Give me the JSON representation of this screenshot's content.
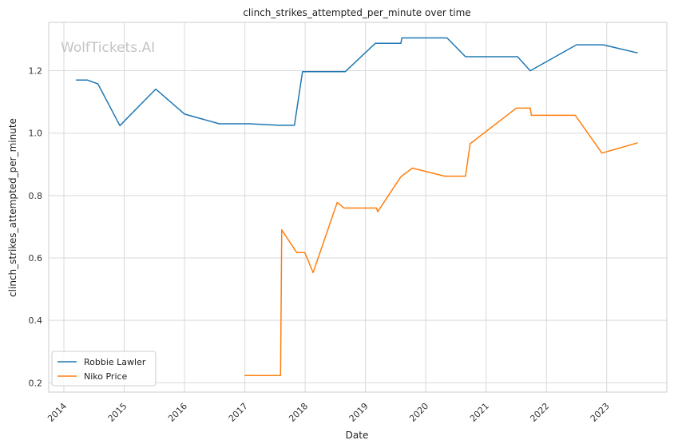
{
  "watermark": "WolfTickets.AI",
  "colors": {
    "background": "#ffffff",
    "grid": "#d9d9d9",
    "frame": "#cccccc",
    "series1": "#1f77b4",
    "series2": "#ff7f0e"
  },
  "chart_data": {
    "type": "line",
    "title": "clinch_strikes_attempted_per_minute over time",
    "xlabel": "Date",
    "ylabel": "clinch_strikes_attempted_per_minute",
    "x_is_date": true,
    "xlim": [
      "2013-10-01",
      "2023-12-31"
    ],
    "ylim": [
      0.17,
      1.355
    ],
    "x_ticks": [
      "2014",
      "2015",
      "2016",
      "2017",
      "2018",
      "2019",
      "2020",
      "2021",
      "2022",
      "2023"
    ],
    "y_ticks": [
      0.2,
      0.4,
      0.6,
      0.8,
      1.0,
      1.2
    ],
    "grid": true,
    "legend_position": "lower-left",
    "series": [
      {
        "name": "Robbie Lawler",
        "color": "#1f77b4",
        "points": [
          [
            "2014-03-15",
            1.17
          ],
          [
            "2014-05-24",
            1.17
          ],
          [
            "2014-07-26",
            1.158
          ],
          [
            "2014-12-06",
            1.024
          ],
          [
            "2015-07-11",
            1.141
          ],
          [
            "2016-01-02",
            1.061
          ],
          [
            "2016-07-30",
            1.03
          ],
          [
            "2017-01-28",
            1.03
          ],
          [
            "2017-07-29",
            1.025
          ],
          [
            "2017-10-28",
            1.025
          ],
          [
            "2017-12-16",
            1.197
          ],
          [
            "2018-09-01",
            1.197
          ],
          [
            "2019-03-02",
            1.288
          ],
          [
            "2019-08-03",
            1.288
          ],
          [
            "2019-08-10",
            1.305
          ],
          [
            "2020-05-09",
            1.305
          ],
          [
            "2020-08-29",
            1.245
          ],
          [
            "2021-07-10",
            1.245
          ],
          [
            "2021-09-25",
            1.2
          ],
          [
            "2022-07-02",
            1.283
          ],
          [
            "2022-12-10",
            1.283
          ],
          [
            "2023-07-08",
            1.257
          ]
        ]
      },
      {
        "name": "Niko Price",
        "color": "#ff7f0e",
        "points": [
          [
            "2016-12-30",
            0.223
          ],
          [
            "2017-08-05",
            0.223
          ],
          [
            "2017-08-12",
            0.69
          ],
          [
            "2017-11-11",
            0.617
          ],
          [
            "2017-12-30",
            0.617
          ],
          [
            "2018-02-18",
            0.553
          ],
          [
            "2018-07-14",
            0.778
          ],
          [
            "2018-08-25",
            0.76
          ],
          [
            "2019-03-09",
            0.76
          ],
          [
            "2019-03-16",
            0.748
          ],
          [
            "2019-08-03",
            0.86
          ],
          [
            "2019-10-12",
            0.888
          ],
          [
            "2020-04-25",
            0.862
          ],
          [
            "2020-08-29",
            0.862
          ],
          [
            "2020-09-26",
            0.966
          ],
          [
            "2021-07-03",
            1.08
          ],
          [
            "2021-09-25",
            1.08
          ],
          [
            "2021-10-02",
            1.057
          ],
          [
            "2022-06-25",
            1.057
          ],
          [
            "2022-12-03",
            0.936
          ],
          [
            "2023-07-08",
            0.969
          ]
        ]
      }
    ]
  }
}
